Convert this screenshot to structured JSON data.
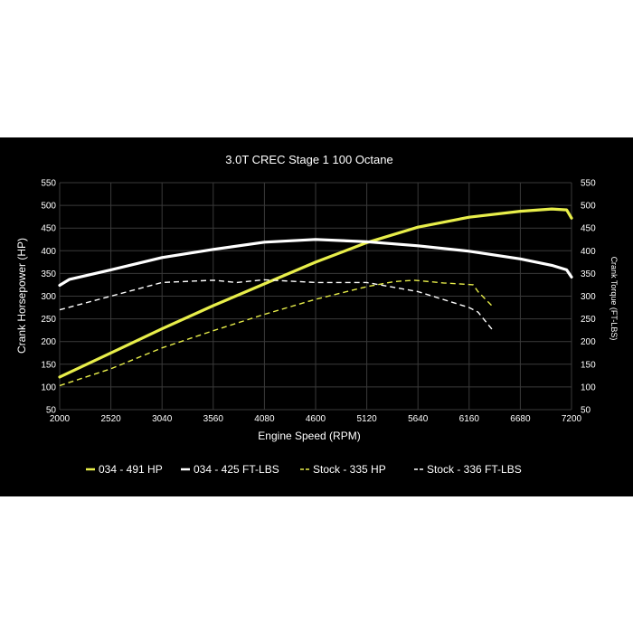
{
  "chart_data": {
    "type": "line",
    "title": "3.0T CREC Stage 1 100 Octane",
    "xlabel": "Engine Speed (RPM)",
    "ylabel_left": "Crank Horsepower (HP)",
    "ylabel_right": "Crank Torque (FT-LBS)",
    "xlim": [
      2000,
      7200
    ],
    "ylim": [
      50,
      550
    ],
    "x_ticks": [
      2000,
      2520,
      3040,
      3560,
      4080,
      4600,
      5120,
      5640,
      6160,
      6680,
      7200
    ],
    "y_ticks": [
      50,
      100,
      150,
      200,
      250,
      300,
      350,
      400,
      450,
      500,
      550
    ],
    "grid": true,
    "legend_position": "bottom",
    "series": [
      {
        "name": "034 - 491 HP",
        "color": "#e8ee4a",
        "style": "solid",
        "x": [
          2000,
          2520,
          3040,
          3560,
          4080,
          4600,
          5120,
          5640,
          6160,
          6680,
          7000,
          7150,
          7200
        ],
        "y": [
          122,
          175,
          228,
          279,
          327,
          375,
          418,
          452,
          474,
          487,
          492,
          490,
          472
        ]
      },
      {
        "name": "034 - 425 FT-LBS",
        "color": "#ffffff",
        "style": "solid",
        "x": [
          2000,
          2100,
          2520,
          3040,
          3560,
          4080,
          4600,
          5120,
          5640,
          6160,
          6680,
          7000,
          7150,
          7200
        ],
        "y": [
          324,
          337,
          358,
          385,
          403,
          419,
          425,
          420,
          411,
          399,
          382,
          368,
          358,
          342
        ]
      },
      {
        "name": "Stock - 335 HP",
        "color": "#e8ee4a",
        "style": "dashed",
        "x": [
          2000,
          2520,
          3040,
          3560,
          4080,
          4600,
          5120,
          5400,
          5600,
          5900,
          6200,
          6250,
          6400
        ],
        "y": [
          103,
          140,
          186,
          224,
          260,
          293,
          321,
          332,
          335,
          329,
          325,
          310,
          277
        ]
      },
      {
        "name": "Stock - 336 FT-LBS",
        "color": "#ffffff",
        "style": "dashed",
        "x": [
          2000,
          2520,
          3040,
          3560,
          3800,
          4080,
          4600,
          5120,
          5640,
          6160,
          6250,
          6400
        ],
        "y": [
          270,
          300,
          330,
          335,
          330,
          336,
          330,
          330,
          310,
          275,
          265,
          225
        ]
      }
    ]
  }
}
